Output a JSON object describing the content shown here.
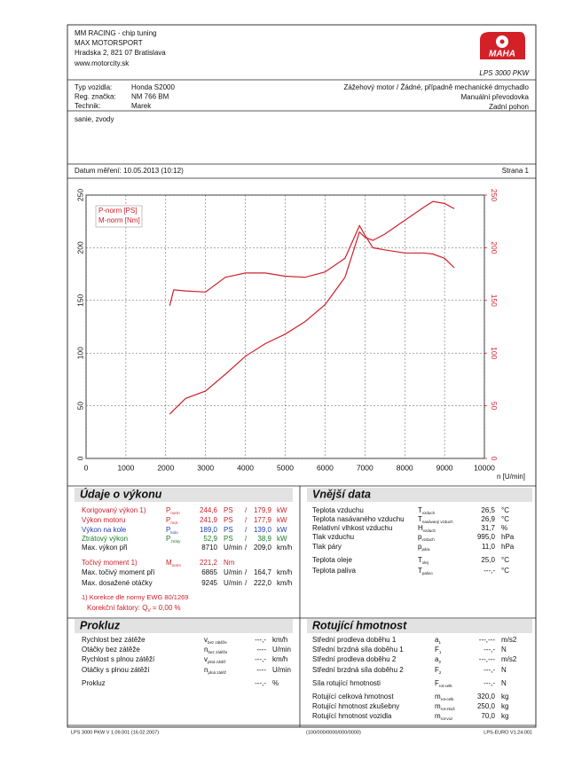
{
  "header": {
    "company": [
      "MM RACING - chip tuning",
      "MAX MOTORSPORT",
      "Hradska 2, 821 07 Bratislava",
      "www.motorcity.sk"
    ],
    "logo": "MAHA",
    "model": "LPS 3000 PKW"
  },
  "vehicle": {
    "rows": [
      [
        "Typ vozidla:",
        "Honda S2000"
      ],
      [
        "Reg. značka:",
        "NM 766 BM"
      ],
      [
        "Technik:",
        "Marek"
      ]
    ],
    "engine": [
      "Zážehový motor / Žádné, případně mechanické dmychadlo",
      "Manuální převodovka",
      "Zadní pohon"
    ],
    "note": "sanie, zvody"
  },
  "measurement": {
    "date": "Datum měření: 10.05.2013 (10:12)",
    "page": "Strana 1"
  },
  "chart_data": {
    "type": "line",
    "x": [
      2100,
      2200,
      2500,
      3000,
      3500,
      4000,
      4500,
      5000,
      5500,
      6000,
      6500,
      6865,
      7000,
      7200,
      7500,
      8000,
      8500,
      8710,
      9000,
      9245
    ],
    "series": [
      {
        "name": "P-norm [PS]",
        "color": "#d0202a",
        "values": [
          42,
          46,
          57,
          64,
          80,
          97,
          109,
          118,
          130,
          146,
          172,
          215,
          210,
          207,
          213,
          226,
          239,
          244,
          242,
          237
        ]
      },
      {
        "name": "M-norm [Nm]",
        "color": "#d0202a",
        "values": [
          145,
          160,
          159,
          158,
          172,
          176,
          176,
          173,
          172,
          177,
          190,
          221,
          212,
          200,
          198,
          195,
          195,
          194,
          190,
          181
        ]
      }
    ],
    "xlabel": "n [U/min]",
    "xlim": [
      0,
      10000
    ],
    "xticks": [
      0,
      1000,
      2000,
      3000,
      4000,
      5000,
      6000,
      7000,
      8000,
      9000,
      10000
    ],
    "ylim": [
      0,
      250
    ],
    "yticks": [
      0,
      50,
      100,
      150,
      200,
      250
    ],
    "y2lim": [
      0,
      250
    ],
    "y2ticks": [
      0,
      50,
      100,
      150,
      200,
      250
    ],
    "y2color": "#d0202a",
    "grid": true,
    "legend": "upper left"
  },
  "performance": {
    "title": "Údaje o výkonu",
    "rows": [
      {
        "label": "Korigovaný výkon 1)",
        "sym": "P",
        "sub": "norm",
        "value": "244,6",
        "unit": "PS",
        "sep": "/",
        "value2": "179,9",
        "unit2": "kW",
        "color": "#d0202a"
      },
      {
        "label": "Výkon motoru",
        "sym": "P",
        "sub": "mot",
        "value": "241,9",
        "unit": "PS",
        "sep": "/",
        "value2": "177,9",
        "unit2": "kW",
        "color": "#d0202a"
      },
      {
        "label": "Výkon na kole",
        "sym": "P",
        "sub": "kolo",
        "value": "189,0",
        "unit": "PS",
        "sep": "/",
        "value2": "139,0",
        "unit2": "kW",
        "color": "#1f3fb0"
      },
      {
        "label": "Ztrátový výkon",
        "sym": "P",
        "sub": "ztráty",
        "value": "52,9",
        "unit": "PS",
        "sep": "/",
        "value2": "38,9",
        "unit2": "kW",
        "color": "#1b7a2a"
      },
      {
        "label": "Max. výkon při",
        "value": "8710",
        "unit": "U/min",
        "sep": "/",
        "value2": "209,0",
        "unit2": "km/h",
        "color": "#111111"
      },
      {
        "label": "Točivý moment 1)",
        "sym": "M",
        "sub": "norm",
        "value": "221,2",
        "unit": "Nm",
        "color": "#d0202a"
      },
      {
        "label": "Max. točivý moment při",
        "value": "6865",
        "unit": "U/min",
        "sep": "/",
        "value2": "164,7",
        "unit2": "km/h",
        "color": "#111111"
      },
      {
        "label": "Max. dosažené otáčky",
        "value": "9245",
        "unit": "U/min",
        "sep": "/",
        "value2": "222,0",
        "unit2": "km/h",
        "color": "#111111"
      }
    ],
    "footnote": "1) Korekce dle normy EWG 80/1269",
    "correction": {
      "text": "Korekční faktory: Q",
      "sub": "V",
      "rest": "=  0,00 %"
    }
  },
  "ambient": {
    "title": "Vnější data",
    "rows": [
      {
        "label": "Teplota vzduchu",
        "sym": "T",
        "sub": "vzduch",
        "value": "26,5",
        "unit": "°C"
      },
      {
        "label": "Teplota nasávaného vzduchu",
        "sym": "T",
        "sub": "nasávaný vzduch",
        "value": "26,9",
        "unit": "°C"
      },
      {
        "label": "Relativní vlhkost vzduchu",
        "sym": "H",
        "sub": "vzduch",
        "value": "31,7",
        "unit": "%"
      },
      {
        "label": "Tlak vzduchu",
        "sym": "p",
        "sub": "vzduch",
        "value": "995,0",
        "unit": "hPa"
      },
      {
        "label": "Tlak páry",
        "sym": "p",
        "sub": "pára",
        "value": "11,0",
        "unit": "hPa"
      },
      {
        "label": "Teplota oleje",
        "sym": "T",
        "sub": "olej",
        "value": "25,0",
        "unit": "°C"
      },
      {
        "label": "Teplota paliva",
        "sym": "T",
        "sub": "palivo",
        "value": "---,-",
        "unit": "°C"
      }
    ]
  },
  "slip": {
    "title": "Prokluz",
    "rows": [
      {
        "label": "Rychlost bez zátěže",
        "sym": "v",
        "sub": "bez zátěže",
        "value": "---,-",
        "unit": "km/h"
      },
      {
        "label": "Otáčky bez zátěže",
        "sym": "n",
        "sub": "bez zátěže",
        "value": "----",
        "unit": "U/min"
      },
      {
        "label": "Rychlost s plnou zátěží",
        "sym": "v",
        "sub": "plná zátěž",
        "value": "---,-",
        "unit": "km/h"
      },
      {
        "label": "Otáčky s plnou zátěží",
        "sym": "n",
        "sub": "plná zátěž",
        "value": "----",
        "unit": "U/min"
      },
      {
        "label": "Prokluz",
        "value": "---,-",
        "unit": "%"
      }
    ]
  },
  "rotating": {
    "title": "Rotující hmotnost",
    "rows": [
      {
        "label": "Střední prodleva doběhu 1",
        "sym": "a",
        "sub": "1",
        "value": "---,---",
        "unit": "m/s2"
      },
      {
        "label": "Střední brzdná síla doběhu 1",
        "sym": "F",
        "sub": "1",
        "value": "---,-",
        "unit": "N"
      },
      {
        "label": "Střední prodleva doběhu 2",
        "sym": "a",
        "sub": "2",
        "value": "---,---",
        "unit": "m/s2"
      },
      {
        "label": "Střední brzdná síla doběhu 2",
        "sym": "F",
        "sub": "2",
        "value": "---,-",
        "unit": "N"
      },
      {
        "label": "Síla rotující hmotnosti",
        "sym": "F",
        "sub": "rot-celk",
        "value": "---,-",
        "unit": "N"
      },
      {
        "label": "Rotující celková hmotnost",
        "sym": "m",
        "sub": "rot-celk",
        "value": "320,0",
        "unit": "kg"
      },
      {
        "label": "Rotující hmotnost zkušebny",
        "sym": "m",
        "sub": "rot-zkuš",
        "value": "250,0",
        "unit": "kg"
      },
      {
        "label": "Rotující hmotnost vozidla",
        "sym": "m",
        "sub": "rot-voz",
        "value": "70,0",
        "unit": "kg"
      }
    ]
  },
  "footer": {
    "left": "LPS 3000 PKW V 1.09.001 (16.02.2007)",
    "middle": "(100/000/0000/000/0000)",
    "right": "LPS-EURO V1.24.001"
  }
}
